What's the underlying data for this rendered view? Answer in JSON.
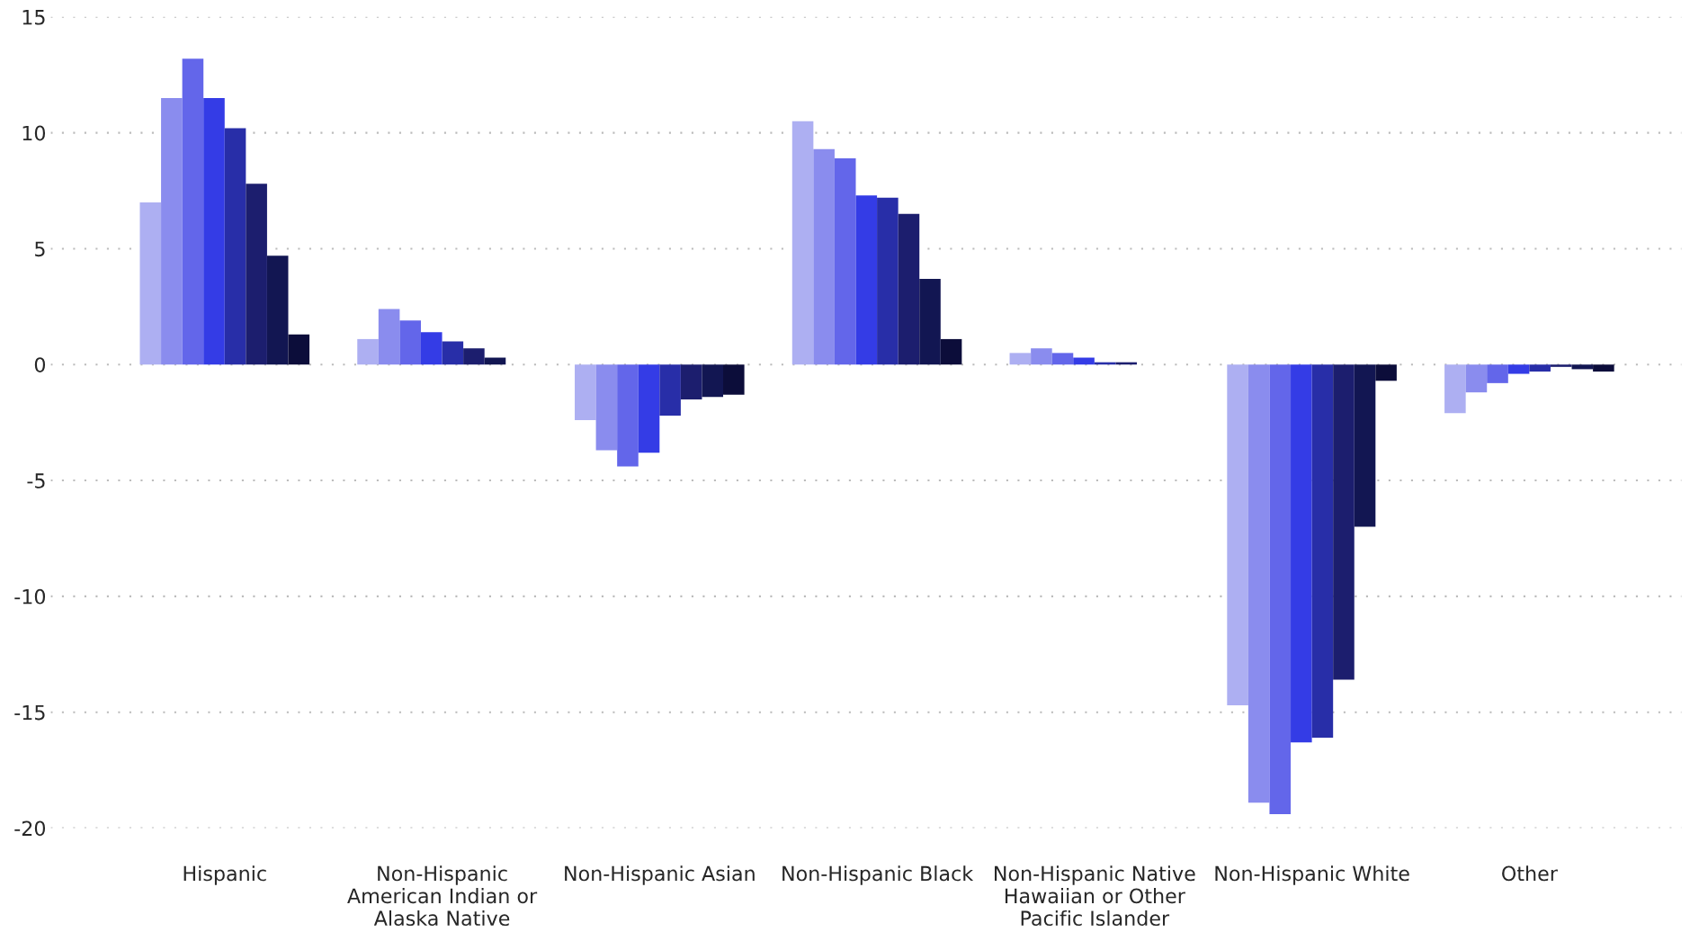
{
  "chart_data": {
    "type": "bar",
    "categories": [
      "Hispanic",
      "Non-Hispanic\nAmerican Indian or\nAlaska Native",
      "Non-Hispanic Asian",
      "Non-Hispanic Black",
      "Non-Hispanic Native\nHawaiian or Other\nPacific Islander",
      "Non-Hispanic White",
      "Other"
    ],
    "series": [
      {
        "color": "#adaff2",
        "values": [
          7.0,
          1.1,
          -2.4,
          10.5,
          0.5,
          -14.7,
          -2.1
        ]
      },
      {
        "color": "#8a8cee",
        "values": [
          11.5,
          2.4,
          -3.7,
          9.3,
          0.7,
          -18.9,
          -1.2
        ]
      },
      {
        "color": "#6366ea",
        "values": [
          13.2,
          1.9,
          -4.4,
          8.9,
          0.5,
          -19.4,
          -0.8
        ]
      },
      {
        "color": "#343ce6",
        "values": [
          11.5,
          1.4,
          -3.8,
          7.3,
          0.3,
          -16.3,
          -0.4
        ]
      },
      {
        "color": "#282ea8",
        "values": [
          10.2,
          1.0,
          -2.2,
          7.2,
          0.1,
          -16.1,
          -0.3
        ]
      },
      {
        "color": "#1c1e6e",
        "values": [
          7.8,
          0.7,
          -1.5,
          6.5,
          0.1,
          -13.6,
          -0.1
        ]
      },
      {
        "color": "#121652",
        "values": [
          4.7,
          0.3,
          -1.4,
          3.7,
          null,
          -7.0,
          -0.2
        ]
      },
      {
        "color": "#0c0d3a",
        "values": [
          1.3,
          null,
          -1.3,
          1.1,
          null,
          -0.7,
          -0.3
        ]
      }
    ],
    "ylim": [
      -20,
      15
    ],
    "yticks": [
      -20,
      -15,
      -10,
      -5,
      0,
      5,
      10,
      15
    ],
    "grid": "y"
  }
}
